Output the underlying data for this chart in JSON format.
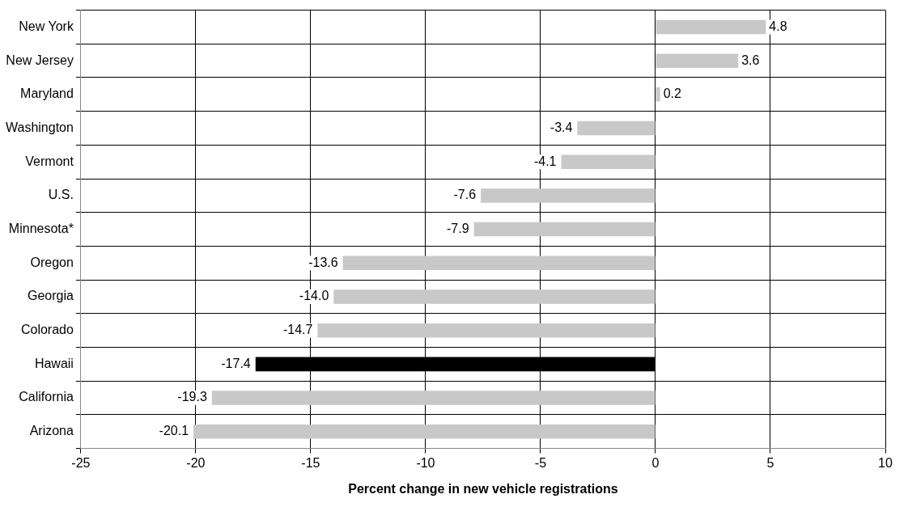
{
  "chart_data": {
    "type": "bar",
    "orientation": "horizontal",
    "xlabel": "Percent change in new vehicle registrations",
    "categories": [
      "New York",
      "New Jersey",
      "Maryland",
      "Washington",
      "Vermont",
      "U.S.",
      "Minnesota*",
      "Oregon",
      "Georgia",
      "Colorado",
      "Hawaii",
      "California",
      "Arizona"
    ],
    "values": [
      4.8,
      3.6,
      0.2,
      -3.4,
      -4.1,
      -7.6,
      -7.9,
      -13.6,
      -14.0,
      -14.7,
      -17.4,
      -19.3,
      -20.1
    ],
    "value_labels": [
      "4.8",
      "3.6",
      "0.2",
      "-3.4",
      "-4.1",
      "-7.6",
      "-7.9",
      "-13.6",
      "-14.0",
      "-14.7",
      "-17.4",
      "-19.3",
      "-20.1"
    ],
    "colors": [
      "#c8c8c8",
      "#c8c8c8",
      "#c8c8c8",
      "#c8c8c8",
      "#c8c8c8",
      "#c8c8c8",
      "#c8c8c8",
      "#c8c8c8",
      "#c8c8c8",
      "#c8c8c8",
      "#000000",
      "#c8c8c8",
      "#c8c8c8"
    ],
    "xlim": [
      -25,
      10
    ],
    "xticks": [
      -25,
      -20,
      -15,
      -10,
      -5,
      0,
      5,
      10
    ],
    "grid": true
  }
}
